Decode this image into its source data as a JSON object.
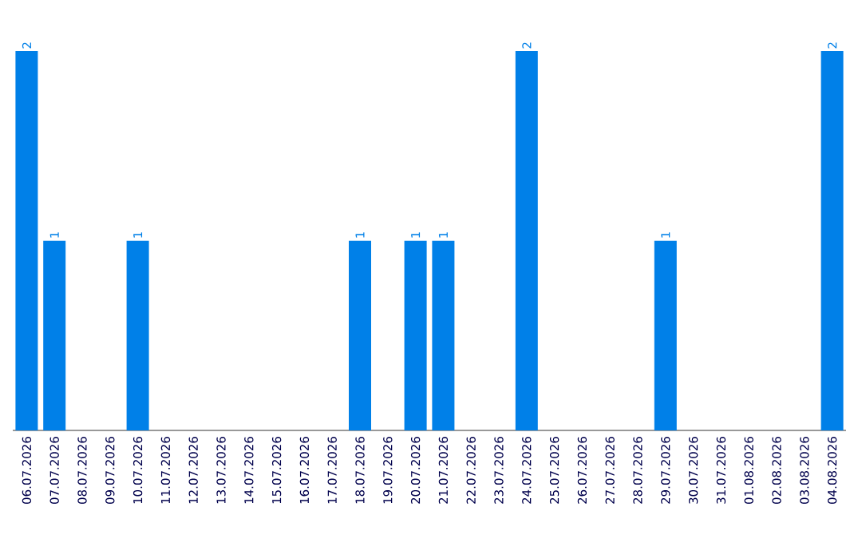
{
  "chart_data": {
    "type": "bar",
    "categories": [
      "06.07.2026",
      "07.07.2026",
      "08.07.2026",
      "09.07.2026",
      "10.07.2026",
      "11.07.2026",
      "12.07.2026",
      "13.07.2026",
      "14.07.2026",
      "15.07.2026",
      "16.07.2026",
      "17.07.2026",
      "18.07.2026",
      "19.07.2026",
      "20.07.2026",
      "21.07.2026",
      "22.07.2026",
      "23.07.2026",
      "24.07.2026",
      "25.07.2026",
      "26.07.2026",
      "27.07.2026",
      "28.07.2026",
      "29.07.2026",
      "30.07.2026",
      "31.07.2026",
      "01.08.2026",
      "02.08.2026",
      "03.08.2026",
      "04.08.2026"
    ],
    "values": [
      2,
      1,
      0,
      0,
      1,
      0,
      0,
      0,
      0,
      0,
      0,
      0,
      1,
      0,
      1,
      1,
      0,
      0,
      2,
      0,
      0,
      0,
      0,
      1,
      0,
      0,
      0,
      0,
      0,
      2
    ],
    "value_labels": [
      "2",
      "1",
      null,
      null,
      "1",
      null,
      null,
      null,
      null,
      null,
      null,
      null,
      "1",
      null,
      "1",
      "1",
      null,
      null,
      "2",
      null,
      null,
      null,
      null,
      "1",
      null,
      null,
      null,
      null,
      null,
      "2"
    ],
    "color": "#0080e8",
    "grid": false
  }
}
